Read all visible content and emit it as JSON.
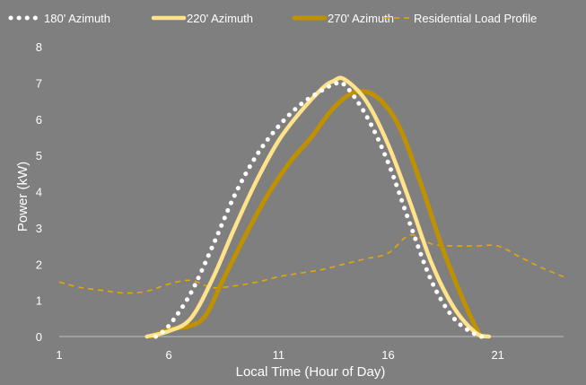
{
  "chart_data": {
    "type": "line",
    "title": "",
    "xlabel": "Local Time (Hour of Day)",
    "ylabel": "Power (kW)",
    "xlim": [
      1,
      24
    ],
    "ylim": [
      0,
      8
    ],
    "xticks": [
      1,
      6,
      11,
      16,
      21
    ],
    "yticks": [
      0,
      1,
      2,
      3,
      4,
      5,
      6,
      7,
      8
    ],
    "grid": false,
    "legend_position": "top",
    "series": [
      {
        "name": "180' Azimuth",
        "style": "dotted",
        "color": "#ffffff",
        "x": [
          5.4,
          6,
          7,
          8,
          9,
          10,
          11,
          12,
          13,
          13.5,
          14,
          15,
          16,
          17,
          18,
          19,
          20,
          20.3
        ],
        "y": [
          0,
          0.3,
          1.2,
          2.5,
          3.9,
          5.0,
          5.8,
          6.4,
          6.8,
          6.95,
          6.95,
          6.1,
          4.8,
          3.1,
          1.5,
          0.5,
          0.05,
          0
        ]
      },
      {
        "name": "220' Azimuth",
        "style": "solid",
        "color": "#ffe38a",
        "x": [
          5,
          6,
          7,
          8,
          9,
          10,
          11,
          12,
          13,
          13.5,
          14,
          15,
          16,
          17,
          18,
          19,
          20,
          20.6
        ],
        "y": [
          0,
          0.15,
          0.5,
          1.6,
          3.0,
          4.3,
          5.4,
          6.2,
          6.85,
          7.05,
          7.1,
          6.5,
          5.3,
          3.7,
          2.0,
          0.8,
          0.1,
          0
        ]
      },
      {
        "name": "270' Azimuth",
        "style": "solid",
        "color": "#bf9000",
        "x": [
          5.2,
          6,
          7,
          7.7,
          8.5,
          9.5,
          10.5,
          11.5,
          12.5,
          13.5,
          14.5,
          15.5,
          16.5,
          17.5,
          18.5,
          19.5,
          20.2
        ],
        "y": [
          0,
          0.2,
          0.3,
          0.6,
          1.6,
          2.8,
          3.9,
          4.8,
          5.5,
          6.3,
          6.75,
          6.6,
          5.8,
          4.2,
          2.4,
          0.9,
          0
        ]
      },
      {
        "name": "Residential Load Profile",
        "style": "dashed",
        "color": "#e6a800",
        "x": [
          1,
          2,
          3,
          4,
          5,
          6,
          7,
          8,
          9,
          10,
          11,
          12,
          13,
          14,
          15,
          16,
          17,
          18,
          19,
          20,
          21,
          22,
          23,
          24
        ],
        "y": [
          1.5,
          1.35,
          1.27,
          1.2,
          1.25,
          1.45,
          1.55,
          1.35,
          1.4,
          1.5,
          1.65,
          1.75,
          1.85,
          2.0,
          2.15,
          2.3,
          2.8,
          2.55,
          2.5,
          2.5,
          2.5,
          2.2,
          1.9,
          1.65
        ]
      }
    ]
  }
}
